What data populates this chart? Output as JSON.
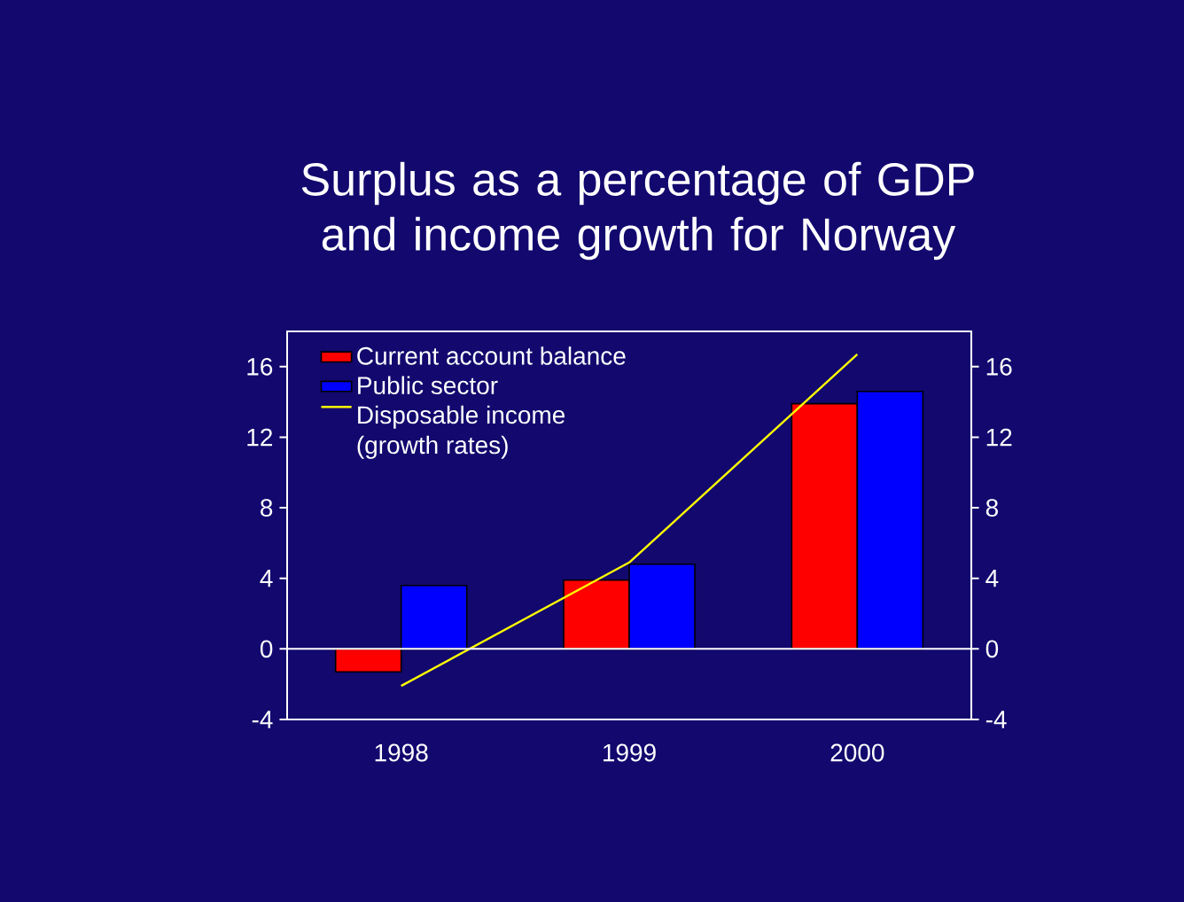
{
  "chart_data": {
    "type": "bar",
    "title": "Surplus as a percentage of GDP and income growth for Norway",
    "categories": [
      "1998",
      "1999",
      "2000"
    ],
    "series": [
      {
        "name": "Current account balance",
        "color": "#ff0000",
        "values": [
          -1.3,
          3.9,
          13.9
        ]
      },
      {
        "name": "Public sector",
        "color": "#0000ff",
        "values": [
          3.6,
          4.8,
          14.6
        ]
      },
      {
        "name": "Disposable income (growth rates)",
        "type": "line",
        "color": "#ffff00",
        "values": [
          -2.1,
          4.9,
          16.7
        ]
      }
    ],
    "ylim": [
      -4,
      18
    ],
    "yticks": [
      -4,
      0,
      4,
      8,
      12,
      16
    ],
    "y2lim": [
      -4,
      18
    ],
    "y2ticks": [
      -4,
      0,
      4,
      8,
      12,
      16
    ],
    "ref_lines": [
      {
        "axis": "y",
        "value": 0,
        "color": "#ffffff"
      }
    ],
    "legend": "top left",
    "grid": false
  }
}
